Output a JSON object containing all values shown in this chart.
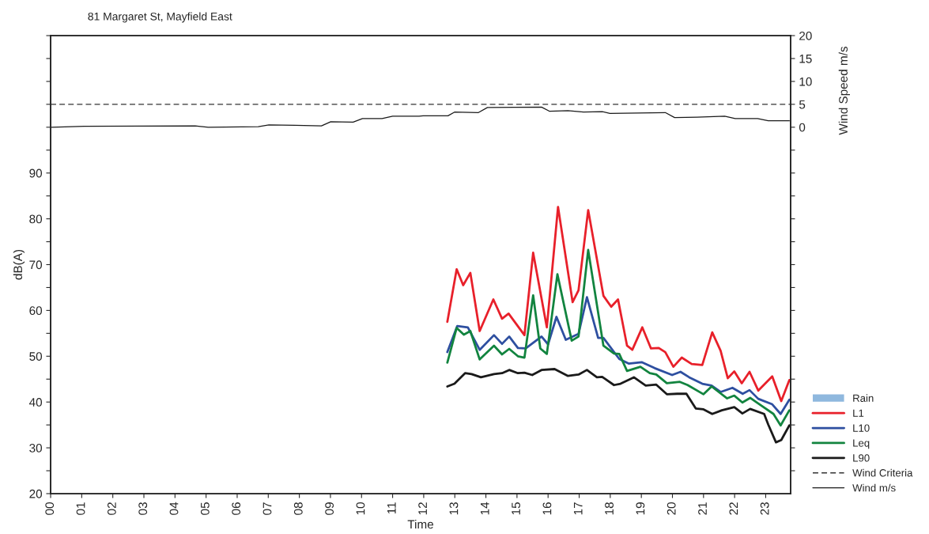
{
  "chart_data": {
    "type": "line",
    "title": "81 Margaret St, Mayfield East",
    "xlabel": "Time",
    "ylabel": "dB(A)",
    "y2label": "Wind Speed m/s",
    "xlim": [
      0,
      23.8
    ],
    "xticks": [
      {
        "value": 0,
        "label": "00"
      },
      {
        "value": 1,
        "label": "01"
      },
      {
        "value": 2,
        "label": "02"
      },
      {
        "value": 3,
        "label": "03"
      },
      {
        "value": 4,
        "label": "04"
      },
      {
        "value": 5,
        "label": "05"
      },
      {
        "value": 6,
        "label": "06"
      },
      {
        "value": 7,
        "label": "07"
      },
      {
        "value": 8,
        "label": "08"
      },
      {
        "value": 9,
        "label": "09"
      },
      {
        "value": 10,
        "label": "10"
      },
      {
        "value": 11,
        "label": "11"
      },
      {
        "value": 12,
        "label": "12"
      },
      {
        "value": 13,
        "label": "13"
      },
      {
        "value": 14,
        "label": "14"
      },
      {
        "value": 15,
        "label": "15"
      },
      {
        "value": 16,
        "label": "16"
      },
      {
        "value": 17,
        "label": "17"
      },
      {
        "value": 18,
        "label": "18"
      },
      {
        "value": 19,
        "label": "19"
      },
      {
        "value": 20,
        "label": "20"
      },
      {
        "value": 21,
        "label": "21"
      },
      {
        "value": 22,
        "label": "22"
      },
      {
        "value": 23,
        "label": "23"
      }
    ],
    "ylim": [
      20,
      120
    ],
    "yticks": [
      20,
      {
        "value": 25,
        "label": null
      },
      30,
      {
        "value": 35,
        "label": null
      },
      40,
      {
        "value": 45,
        "label": null
      },
      50,
      {
        "value": 55,
        "label": null
      },
      60,
      {
        "value": 65,
        "label": null
      },
      70,
      {
        "value": 75,
        "label": null
      },
      80,
      {
        "value": 85,
        "label": null
      },
      90,
      {
        "value": 95,
        "label": null
      },
      {
        "value": 100,
        "label": null
      },
      {
        "value": 105,
        "label": null
      },
      {
        "value": 110,
        "label": null
      },
      {
        "value": 115,
        "label": null
      },
      {
        "value": 120,
        "label": null
      }
    ],
    "y2lim": [
      -80,
      20
    ],
    "y2ticks": [
      {
        "value": -75,
        "label": null
      },
      {
        "value": -70,
        "label": null
      },
      {
        "value": -65,
        "label": null
      },
      {
        "value": -60,
        "label": null
      },
      {
        "value": -55,
        "label": null
      },
      {
        "value": -50,
        "label": null
      },
      {
        "value": -45,
        "label": null
      },
      {
        "value": -40,
        "label": null
      },
      {
        "value": -35,
        "label": null
      },
      {
        "value": -30,
        "label": null
      },
      {
        "value": -25,
        "label": null
      },
      {
        "value": -20,
        "label": null
      },
      {
        "value": -15,
        "label": null
      },
      {
        "value": -10,
        "label": null
      },
      {
        "value": -5,
        "label": null
      },
      0,
      5,
      10,
      15,
      20
    ],
    "grid": false,
    "legend": "right",
    "ref_lines": [
      {
        "axis": "y2",
        "value": 5,
        "label": "Wind Criteria",
        "color": "#333333",
        "line_style": "dashed"
      }
    ],
    "series": [
      {
        "name": "Rain",
        "type": "bar",
        "color": "#8fb8de"
      },
      {
        "name": "L1",
        "color": "#e8202a",
        "x": [
          12.76,
          13.06,
          13.27,
          13.5,
          13.8,
          14.24,
          14.52,
          14.73,
          15.24,
          15.52,
          15.96,
          16.32,
          16.79,
          16.98,
          17.29,
          17.78,
          18.03,
          18.25,
          18.54,
          18.71,
          19.03,
          19.31,
          19.56,
          19.77,
          20.03,
          20.3,
          20.62,
          20.96,
          21.28,
          21.55,
          21.78,
          21.99,
          22.23,
          22.48,
          22.76,
          23.21,
          23.5,
          23.76
        ],
        "values": [
          57.5,
          69.0,
          65.5,
          68.2,
          55.5,
          62.4,
          58.2,
          59.3,
          54.6,
          72.6,
          56.3,
          82.6,
          61.8,
          64.4,
          81.9,
          63.2,
          60.8,
          62.4,
          52.3,
          51.4,
          56.3,
          51.7,
          51.8,
          50.9,
          47.7,
          49.7,
          48.3,
          48.1,
          55.2,
          51.2,
          45.2,
          46.7,
          44.1,
          46.6,
          42.5,
          45.6,
          40.2,
          44.8
        ]
      },
      {
        "name": "L10",
        "color": "#2e4fa0",
        "x": [
          12.76,
          13.08,
          13.42,
          13.8,
          14.26,
          14.52,
          14.75,
          15.03,
          15.28,
          15.79,
          16.0,
          16.27,
          16.57,
          16.98,
          17.25,
          17.61,
          17.78,
          18.29,
          18.59,
          19.01,
          19.43,
          19.99,
          20.26,
          20.54,
          20.96,
          21.26,
          21.55,
          21.93,
          22.26,
          22.48,
          22.76,
          23.21,
          23.48,
          23.76
        ],
        "values": [
          50.9,
          56.6,
          56.3,
          51.4,
          54.6,
          52.7,
          54.3,
          51.8,
          51.7,
          54.3,
          52.6,
          58.6,
          53.6,
          54.9,
          62.9,
          54.0,
          54.0,
          49.4,
          48.4,
          48.7,
          47.4,
          45.9,
          46.6,
          45.4,
          44.0,
          43.6,
          42.2,
          43.1,
          41.8,
          42.6,
          40.7,
          39.5,
          37.4,
          40.5
        ]
      },
      {
        "name": "Leq",
        "color": "#12843f",
        "x": [
          12.76,
          13.06,
          13.29,
          13.5,
          13.8,
          14.26,
          14.52,
          14.75,
          15.03,
          15.24,
          15.52,
          15.75,
          15.96,
          16.3,
          16.76,
          16.98,
          17.29,
          17.78,
          18.12,
          18.29,
          18.54,
          18.97,
          19.27,
          19.48,
          19.82,
          20.24,
          20.49,
          21.0,
          21.26,
          21.76,
          21.99,
          22.25,
          22.5,
          22.82,
          23.25,
          23.48,
          23.76
        ],
        "values": [
          48.6,
          56.2,
          54.7,
          55.5,
          49.3,
          52.3,
          50.4,
          51.6,
          50.0,
          49.7,
          63.3,
          51.7,
          50.5,
          67.9,
          53.4,
          54.3,
          73.2,
          52.3,
          50.6,
          50.5,
          46.8,
          47.7,
          46.3,
          46.0,
          44.1,
          44.4,
          43.7,
          41.7,
          43.4,
          40.8,
          41.4,
          39.9,
          40.9,
          39.4,
          37.4,
          34.9,
          38.2
        ]
      },
      {
        "name": "L90",
        "color": "#1a1a1a",
        "x": [
          12.76,
          12.99,
          13.33,
          13.54,
          13.84,
          14.26,
          14.52,
          14.75,
          15.03,
          15.24,
          15.49,
          15.79,
          16.21,
          16.64,
          16.98,
          17.25,
          17.57,
          17.74,
          18.12,
          18.33,
          18.76,
          19.14,
          19.48,
          19.82,
          20.15,
          20.45,
          20.75,
          21.0,
          21.28,
          21.59,
          21.99,
          22.25,
          22.5,
          22.95,
          23.08,
          23.33,
          23.5,
          23.76
        ],
        "values": [
          43.4,
          44.0,
          46.3,
          46.1,
          45.4,
          46.1,
          46.3,
          47.0,
          46.3,
          46.4,
          45.9,
          47.0,
          47.2,
          45.7,
          46.0,
          47.0,
          45.4,
          45.5,
          43.7,
          44.0,
          45.4,
          43.6,
          43.8,
          41.7,
          41.8,
          41.8,
          38.6,
          38.4,
          37.4,
          38.2,
          38.9,
          37.5,
          38.5,
          37.4,
          35.1,
          31.2,
          31.7,
          34.9
        ]
      },
      {
        "name": "Wind m/s",
        "axis": "y2",
        "color": "#1a1a1a",
        "x": [
          0.03,
          1.08,
          4.65,
          5.07,
          6.68,
          7.02,
          7.86,
          8.71,
          9.01,
          9.73,
          10.03,
          10.66,
          11.0,
          11.85,
          11.98,
          12.78,
          12.99,
          13.76,
          14.05,
          15.79,
          16.04,
          16.64,
          17.14,
          17.74,
          17.99,
          19.77,
          20.07,
          20.79,
          21.68,
          22.02,
          22.74,
          23.08,
          23.76
        ],
        "values": [
          0.0,
          0.2,
          0.3,
          0.0,
          0.1,
          0.5,
          0.4,
          0.3,
          1.2,
          1.1,
          1.9,
          1.9,
          2.4,
          2.4,
          2.5,
          2.5,
          3.3,
          3.2,
          4.3,
          4.4,
          3.5,
          3.6,
          3.3,
          3.4,
          3.0,
          3.2,
          2.1,
          2.2,
          2.4,
          1.9,
          1.9,
          1.4,
          1.4
        ]
      }
    ]
  }
}
